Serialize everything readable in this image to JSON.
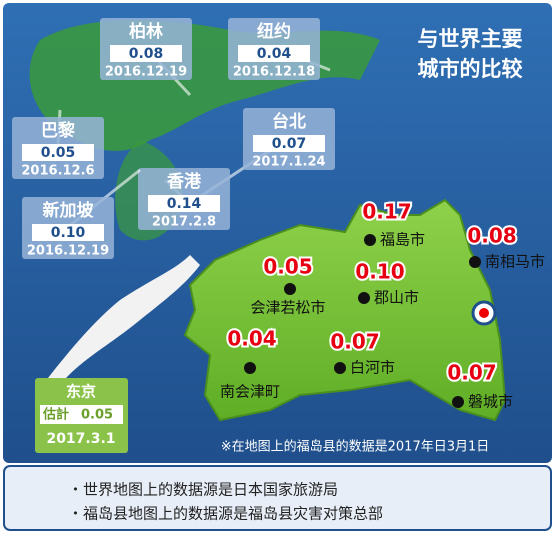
{
  "title": [
    "与世界主要",
    "城市的比较"
  ],
  "world_cities": [
    {
      "name": "柏林",
      "value": "0.08",
      "date": "2016.12.19"
    },
    {
      "name": "纽约",
      "value": "0.04",
      "date": "2016.12.18"
    },
    {
      "name": "巴黎",
      "value": "0.05",
      "date": "2016.12.6"
    },
    {
      "name": "台北",
      "value": "0.07",
      "date": "2017.1.24"
    },
    {
      "name": "香港",
      "value": "0.14",
      "date": "2017.2.8"
    },
    {
      "name": "新加坡",
      "value": "0.10",
      "date": "2016.12.19"
    }
  ],
  "tokyo": {
    "name": "东京",
    "label": "估計",
    "value": "0.05",
    "date": "2017.3.1"
  },
  "fukushima_cities": [
    {
      "name": "福島市",
      "value": "0.17"
    },
    {
      "name": "南相马市",
      "value": "0.08"
    },
    {
      "name": "会津若松市",
      "value": "0.05"
    },
    {
      "name": "郡山市",
      "value": "0.10"
    },
    {
      "name": "南会津町",
      "value": "0.04"
    },
    {
      "name": "白河市",
      "value": "0.07"
    },
    {
      "name": "磐城市",
      "value": "0.07"
    }
  ],
  "note": "※在地图上的福岛县的数据是2017年日3月1日",
  "sources": [
    "・世界地图上的数据源是日本国家旅游局",
    "・福岛县地图上的数据源是福岛县灾害对策总部"
  ]
}
